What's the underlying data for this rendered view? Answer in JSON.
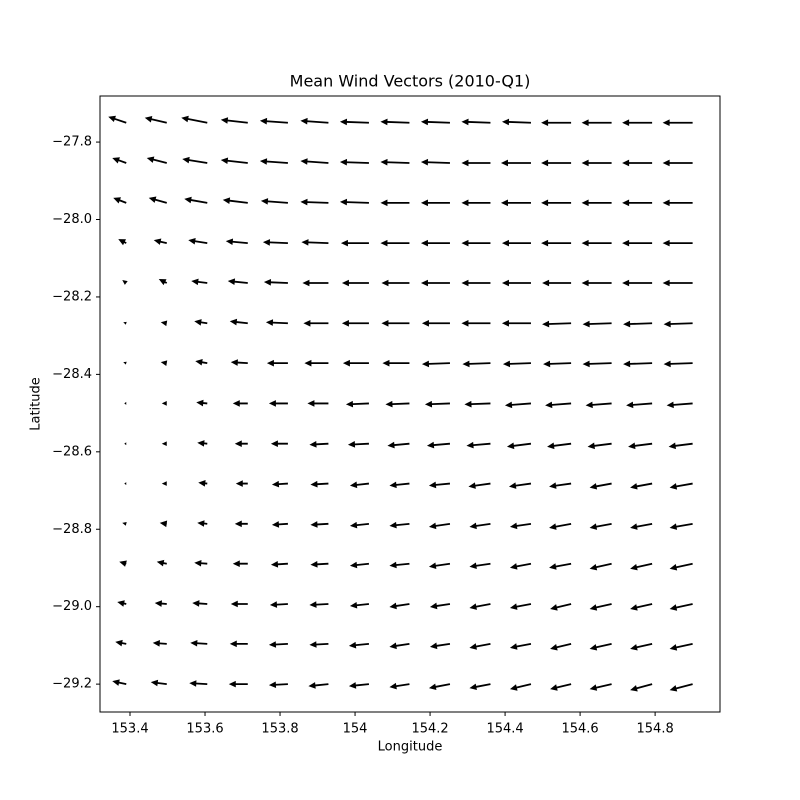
{
  "chart_data": {
    "type": "quiver",
    "title": "Mean Wind Vectors (2010-Q1)",
    "x_label": "Longitude",
    "y_label": "Latitude",
    "xlim": [
      153.32,
      154.973
    ],
    "ylim": [
      -29.272,
      -27.681
    ],
    "xticks": [
      153.4,
      153.6,
      153.8,
      154.0,
      154.2,
      154.4,
      154.6,
      154.8
    ],
    "yticks": [
      {
        "value": -27.8,
        "label": "−27.8"
      },
      {
        "value": -28.0,
        "label": "−28.0"
      },
      {
        "value": -28.2,
        "label": "−28.2"
      },
      {
        "value": -28.4,
        "label": "−28.4"
      },
      {
        "value": -28.6,
        "label": "−28.6"
      },
      {
        "value": -28.8,
        "label": "−28.8"
      },
      {
        "value": -29.0,
        "label": "−29.0"
      },
      {
        "value": -29.2,
        "label": "−29.2"
      }
    ],
    "color": "#000000",
    "x": [
      153.39,
      153.498,
      153.606,
      153.714,
      153.821,
      153.929,
      154.037,
      154.145,
      154.253,
      154.361,
      154.469,
      154.576,
      154.684,
      154.792,
      154.9
    ],
    "y": [
      -27.75,
      -27.854,
      -27.957,
      -28.061,
      -28.164,
      -28.268,
      -28.371,
      -28.475,
      -28.579,
      -28.682,
      -28.786,
      -28.889,
      -28.993,
      -29.096,
      -29.2
    ],
    "u": [
      [
        -18,
        -22,
        -26,
        -27,
        -28,
        -28,
        -29,
        -29,
        -29,
        -29,
        -29,
        -30,
        -30,
        -30,
        -30
      ],
      [
        -14,
        -20,
        -25,
        -27,
        -28,
        -28,
        -29,
        -29,
        -29,
        -29,
        -30,
        -30,
        -30,
        -30,
        -30
      ],
      [
        -13,
        -18,
        -23,
        -25,
        -27,
        -28,
        -29,
        -29,
        -29,
        -29,
        -30,
        -30,
        -30,
        -30,
        -30
      ],
      [
        -8,
        -13,
        -19,
        -22,
        -25,
        -27,
        -28,
        -29,
        -29,
        -29,
        -29,
        -30,
        -30,
        -30,
        -30
      ],
      [
        -4,
        -8,
        -16,
        -20,
        -24,
        -26,
        -27,
        -28,
        -29,
        -29,
        -29,
        -29,
        -30,
        -30,
        -30
      ],
      [
        -3,
        -6,
        -13,
        -18,
        -22,
        -25,
        -27,
        -28,
        -28,
        -29,
        -29,
        -29,
        -29,
        -29,
        -29
      ],
      [
        -3,
        -6,
        -12,
        -17,
        -21,
        -24,
        -26,
        -27,
        -28,
        -28,
        -28,
        -28,
        -29,
        -29,
        -29
      ],
      [
        -2,
        -5,
        -11,
        -15,
        -19,
        -21,
        -23,
        -24,
        -25,
        -26,
        -26,
        -26,
        -26,
        -26,
        -26
      ],
      [
        -2,
        -5,
        -10,
        -13,
        -17,
        -19,
        -21,
        -22,
        -23,
        -24,
        -24,
        -24,
        -24,
        -24,
        -24
      ],
      [
        -2,
        -5,
        -9,
        -12,
        -16,
        -18,
        -19,
        -20,
        -21,
        -22,
        -22,
        -22,
        -22,
        -22,
        -23
      ],
      [
        -4,
        -7,
        -10,
        -13,
        -16,
        -18,
        -19,
        -20,
        -21,
        -21,
        -21,
        -22,
        -22,
        -22,
        -23
      ],
      [
        -7,
        -10,
        -13,
        -15,
        -17,
        -18,
        -19,
        -20,
        -21,
        -21,
        -21,
        -22,
        -22,
        -22,
        -23
      ],
      [
        -9,
        -12,
        -15,
        -17,
        -18,
        -19,
        -19,
        -20,
        -20,
        -21,
        -21,
        -21,
        -22,
        -22,
        -23
      ],
      [
        -11,
        -14,
        -17,
        -18,
        -19,
        -19,
        -20,
        -20,
        -20,
        -21,
        -21,
        -21,
        -22,
        -22,
        -23
      ],
      [
        -14,
        -16,
        -18,
        -19,
        -19,
        -20,
        -20,
        -20,
        -21,
        -21,
        -21,
        -21,
        -22,
        -22,
        -23
      ]
    ],
    "v": [
      [
        6,
        5,
        5,
        3,
        2,
        2,
        1,
        1,
        1,
        1,
        1,
        0,
        0,
        0,
        0
      ],
      [
        5,
        5,
        4,
        3,
        2,
        2,
        1,
        1,
        1,
        0,
        0,
        0,
        0,
        0,
        0
      ],
      [
        5,
        5,
        4,
        3,
        2,
        1,
        1,
        0,
        0,
        0,
        0,
        0,
        0,
        0,
        0
      ],
      [
        4,
        3,
        3,
        2,
        1,
        1,
        0,
        0,
        0,
        0,
        0,
        0,
        0,
        0,
        0
      ],
      [
        3,
        4,
        2,
        2,
        1,
        0,
        0,
        0,
        0,
        0,
        0,
        0,
        0,
        0,
        0
      ],
      [
        1,
        1,
        2,
        2,
        1,
        0,
        0,
        0,
        0,
        0,
        0,
        -1,
        -1,
        -1,
        -1
      ],
      [
        1,
        1,
        2,
        1,
        0,
        0,
        0,
        0,
        -1,
        -1,
        -1,
        -1,
        -1,
        -1,
        -1
      ],
      [
        0,
        0,
        1,
        0,
        0,
        0,
        -1,
        -1,
        -1,
        -1,
        -2,
        -2,
        -2,
        -2,
        -2
      ],
      [
        0,
        0,
        1,
        0,
        0,
        -1,
        -1,
        -2,
        -2,
        -2,
        -3,
        -3,
        -3,
        -3,
        -3
      ],
      [
        0,
        0,
        1,
        0,
        -1,
        -1,
        -2,
        -2,
        -2,
        -3,
        -3,
        -3,
        -4,
        -4,
        -4
      ],
      [
        1,
        1,
        1,
        0,
        -1,
        -1,
        -2,
        -2,
        -3,
        -3,
        -3,
        -4,
        -4,
        -4,
        -4
      ],
      [
        2,
        2,
        1,
        0,
        -1,
        -1,
        -2,
        -2,
        -3,
        -3,
        -4,
        -4,
        -5,
        -5,
        -5
      ],
      [
        2,
        1,
        1,
        0,
        -1,
        -1,
        -2,
        -3,
        -3,
        -4,
        -4,
        -5,
        -5,
        -5,
        -5
      ],
      [
        2,
        1,
        1,
        0,
        -1,
        -1,
        -2,
        -3,
        -3,
        -4,
        -4,
        -5,
        -5,
        -5,
        -5
      ],
      [
        3,
        2,
        1,
        0,
        -1,
        -2,
        -2,
        -3,
        -4,
        -4,
        -5,
        -5,
        -5,
        -6,
        -6
      ]
    ]
  }
}
